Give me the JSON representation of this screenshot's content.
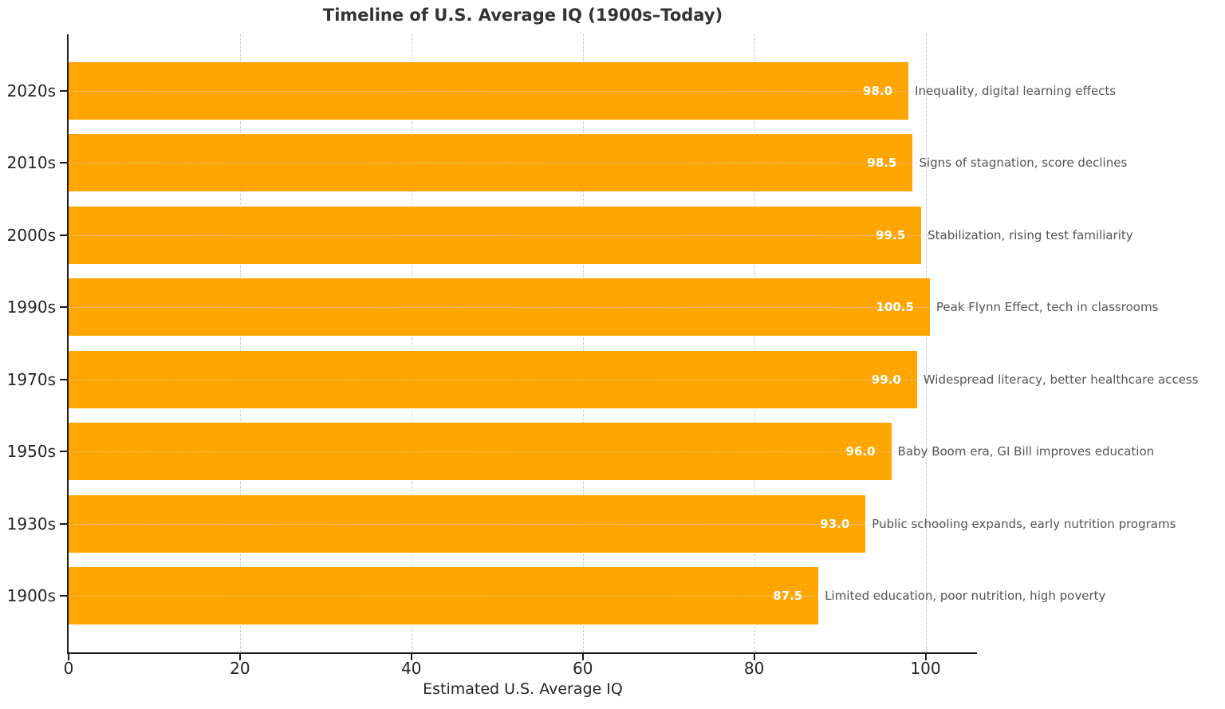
{
  "chart_data": {
    "type": "bar",
    "orientation": "horizontal",
    "title": "Timeline of U.S. Average IQ (1900s–Today)",
    "xlabel": "Estimated U.S. Average IQ",
    "ylabel": "",
    "categories": [
      "2020s",
      "2010s",
      "2000s",
      "1990s",
      "1970s",
      "1950s",
      "1930s",
      "1900s"
    ],
    "values": [
      98.0,
      98.5,
      99.5,
      100.5,
      99.0,
      96.0,
      93.0,
      87.5
    ],
    "value_labels": [
      "98.0",
      "98.5",
      "99.5",
      "100.5",
      "99.0",
      "96.0",
      "93.0",
      "87.5"
    ],
    "annotations": [
      "Inequality, digital learning effects",
      "Signs of stagnation, score declines",
      "Stabilization, rising test familiarity",
      "Peak Flynn Effect, tech in classrooms",
      "Widespread literacy, better healthcare access",
      "Baby Boom era, GI Bill improves education",
      "Public schooling expands, early nutrition programs",
      "Limited education, poor nutrition, high poverty"
    ],
    "x_ticks": [
      0,
      20,
      40,
      60,
      80,
      100
    ],
    "xlim": [
      0,
      106
    ],
    "grid": "dashed",
    "legend_position": "none",
    "colors": {
      "bar": "#FFA500",
      "value_label": "#FFFFFF",
      "annotation": "#555555",
      "title": "#333333",
      "tick_label": "#262626",
      "spine": "#1a1a1a",
      "gridline": "#cccccc",
      "background": "#FFFFFF"
    }
  }
}
